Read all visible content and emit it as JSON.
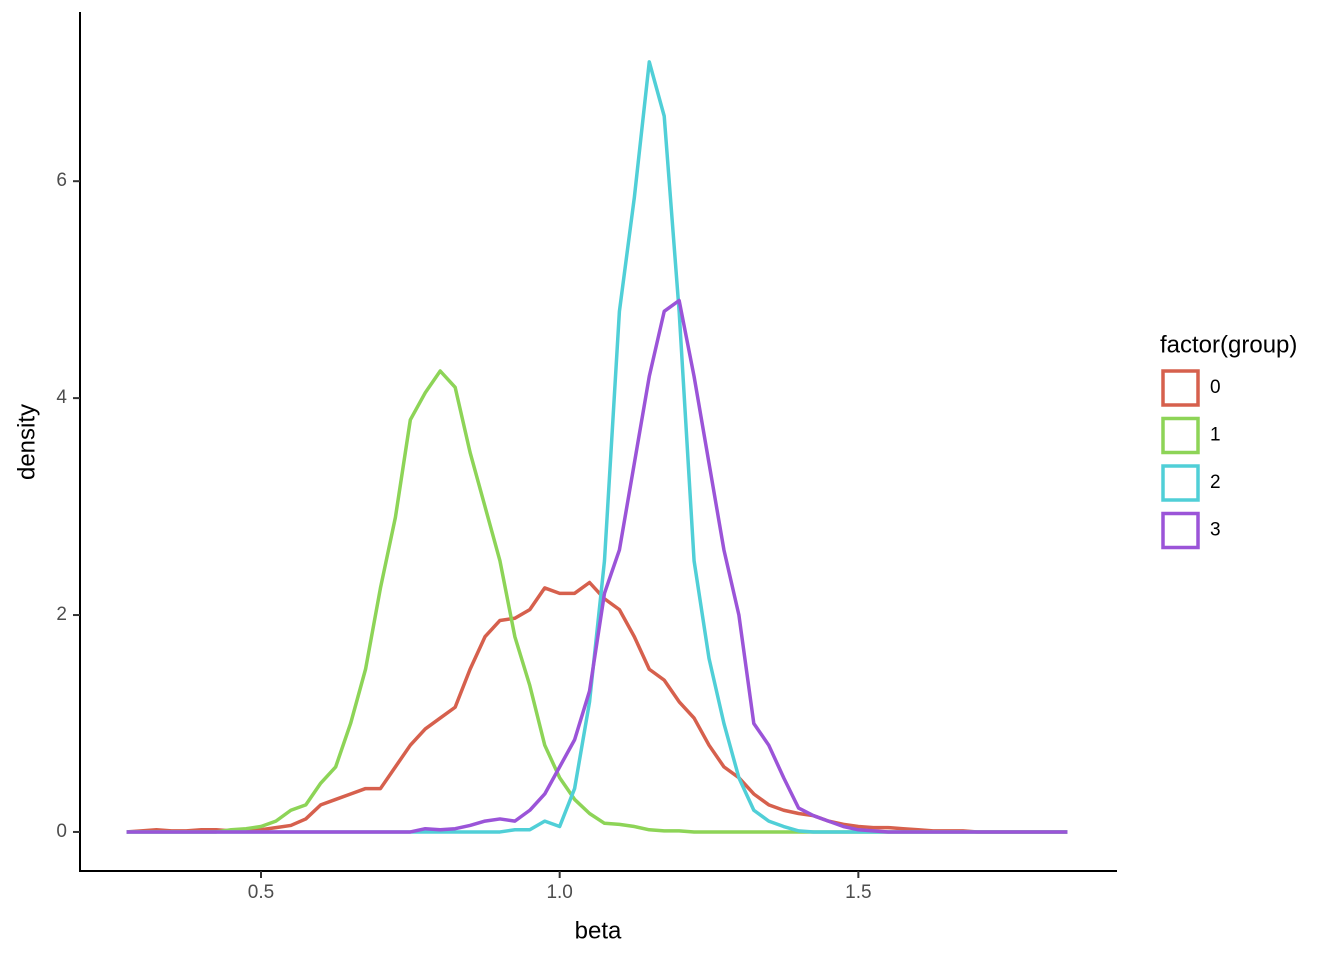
{
  "chart_data": {
    "type": "line",
    "x_label": "beta",
    "y_label": "density",
    "legend_title": "factor(group)",
    "legend_position": "right",
    "grid": false,
    "x": [
      0.275,
      0.3,
      0.325,
      0.35,
      0.375,
      0.4,
      0.425,
      0.45,
      0.475,
      0.5,
      0.525,
      0.55,
      0.575,
      0.6,
      0.625,
      0.65,
      0.675,
      0.7,
      0.725,
      0.75,
      0.775,
      0.8,
      0.825,
      0.85,
      0.875,
      0.9,
      0.925,
      0.95,
      0.975,
      1.0,
      1.025,
      1.05,
      1.075,
      1.1,
      1.125,
      1.15,
      1.175,
      1.2,
      1.225,
      1.25,
      1.275,
      1.3,
      1.325,
      1.35,
      1.375,
      1.4,
      1.425,
      1.45,
      1.475,
      1.5,
      1.525,
      1.55,
      1.575,
      1.6,
      1.625,
      1.65,
      1.675,
      1.7,
      1.725,
      1.75,
      1.775,
      1.8,
      1.825,
      1.85
    ],
    "series": [
      {
        "name": "0",
        "color": "#D6604D",
        "values": [
          0,
          0.01,
          0.02,
          0.01,
          0.01,
          0.02,
          0.02,
          0.01,
          0.02,
          0.02,
          0.04,
          0.06,
          0.12,
          0.25,
          0.3,
          0.35,
          0.4,
          0.4,
          0.6,
          0.8,
          0.95,
          1.05,
          1.15,
          1.5,
          1.8,
          1.95,
          1.97,
          2.05,
          2.25,
          2.2,
          2.2,
          2.3,
          2.15,
          2.05,
          1.8,
          1.5,
          1.4,
          1.2,
          1.05,
          0.8,
          0.6,
          0.5,
          0.35,
          0.25,
          0.2,
          0.17,
          0.15,
          0.1,
          0.07,
          0.05,
          0.04,
          0.04,
          0.03,
          0.02,
          0.01,
          0.01,
          0.01,
          0,
          0,
          0,
          0,
          0,
          0,
          0
        ]
      },
      {
        "name": "1",
        "color": "#8DD457",
        "values": [
          0,
          0,
          0,
          0,
          0,
          0,
          0,
          0.02,
          0.03,
          0.05,
          0.1,
          0.2,
          0.25,
          0.45,
          0.6,
          1.0,
          1.5,
          2.25,
          2.9,
          3.8,
          4.05,
          4.25,
          4.1,
          3.5,
          3.0,
          2.5,
          1.8,
          1.35,
          0.8,
          0.5,
          0.3,
          0.17,
          0.08,
          0.07,
          0.05,
          0.02,
          0.01,
          0.01,
          0,
          0,
          0,
          0,
          0,
          0,
          0,
          0,
          0,
          0,
          0,
          0,
          0,
          0,
          0,
          0,
          0,
          0,
          0,
          0,
          0,
          0,
          0,
          0,
          0,
          0
        ]
      },
      {
        "name": "2",
        "color": "#50CFD7",
        "values": [
          0,
          0,
          0,
          0,
          0,
          0,
          0,
          0,
          0,
          0,
          0,
          0,
          0,
          0,
          0,
          0,
          0,
          0,
          0,
          0,
          0,
          0,
          0,
          0,
          0,
          0,
          0.02,
          0.02,
          0.1,
          0.05,
          0.4,
          1.2,
          2.5,
          4.8,
          5.85,
          7.1,
          6.6,
          4.8,
          2.5,
          1.6,
          1.0,
          0.5,
          0.2,
          0.1,
          0.05,
          0.01,
          0,
          0,
          0,
          0,
          0,
          0,
          0,
          0,
          0,
          0,
          0,
          0,
          0,
          0,
          0,
          0,
          0,
          0
        ]
      },
      {
        "name": "3",
        "color": "#9B54D8",
        "values": [
          0,
          0,
          0,
          0,
          0,
          0,
          0,
          0,
          0,
          0,
          0,
          0,
          0,
          0,
          0,
          0,
          0,
          0,
          0,
          0,
          0.03,
          0.02,
          0.03,
          0.06,
          0.1,
          0.12,
          0.1,
          0.2,
          0.35,
          0.6,
          0.85,
          1.3,
          2.2,
          2.6,
          3.4,
          4.2,
          4.8,
          4.9,
          4.2,
          3.4,
          2.6,
          2.0,
          1.0,
          0.8,
          0.5,
          0.22,
          0.15,
          0.1,
          0.05,
          0.02,
          0.01,
          0,
          0,
          0,
          0,
          0,
          0,
          0,
          0,
          0,
          0,
          0,
          0,
          0
        ]
      }
    ],
    "xlim": [
      0.197,
      1.933
    ],
    "xticks": [
      0.5,
      {
        "value": 1.0,
        "label": "1.0"
      },
      1.5
    ],
    "ylim": [
      -0.36,
      7.56
    ],
    "yticks": [
      0,
      2,
      4,
      6
    ]
  }
}
